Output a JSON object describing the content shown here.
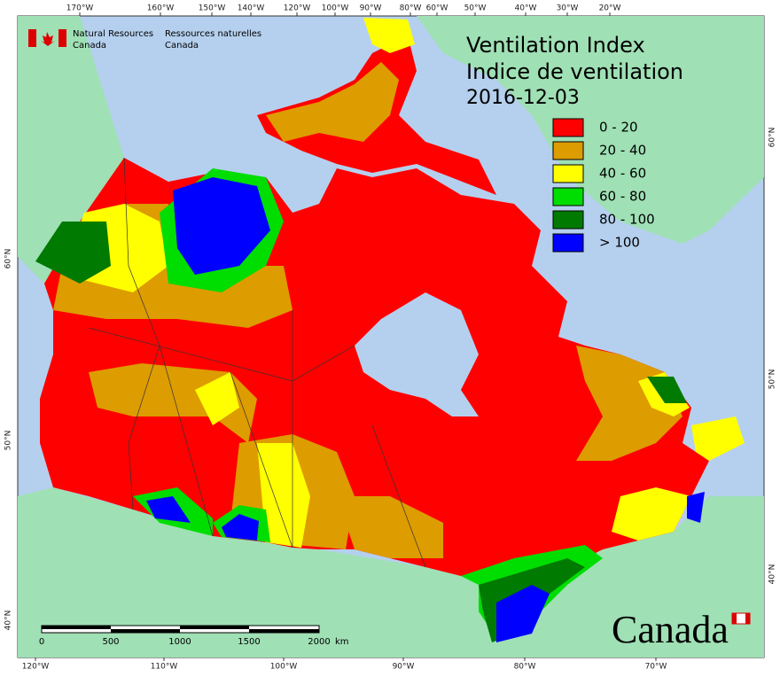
{
  "header": {
    "title": [
      "Ventilation Index",
      "Indice de ventilation"
    ],
    "date": "2016-12-03"
  },
  "agency": {
    "en": [
      "Natural Resources",
      "Canada"
    ],
    "fr": [
      "Ressources naturelles",
      "Canada"
    ]
  },
  "legend": {
    "items": [
      {
        "label": "0 - 20",
        "color": "#ff0000"
      },
      {
        "label": "20 - 40",
        "color": "#dd9c00"
      },
      {
        "label": "40 - 60",
        "color": "#ffff00"
      },
      {
        "label": "60 - 80",
        "color": "#00dd00"
      },
      {
        "label": "80 - 100",
        "color": "#007a00"
      },
      {
        "label": "> 100",
        "color": "#0000ff"
      }
    ]
  },
  "graticule": {
    "top": [
      "170°W",
      "160°W",
      "150°W",
      "140°W",
      "120°W",
      "100°W",
      "90°W",
      "80°W",
      "60°W",
      "50°W",
      "40°W",
      "30°W",
      "20°W"
    ],
    "bottom": [
      "120°W",
      "110°W",
      "100°W",
      "90°W",
      "80°W",
      "70°W"
    ],
    "left": [
      "60°N",
      "50°N",
      "40°N"
    ],
    "right": [
      "60°N",
      "50°N",
      "40°N"
    ]
  },
  "scale_bar": {
    "labels": [
      "0",
      "500",
      "1000",
      "1500",
      "2000"
    ],
    "unit": "km"
  },
  "wordmark": "Canada"
}
